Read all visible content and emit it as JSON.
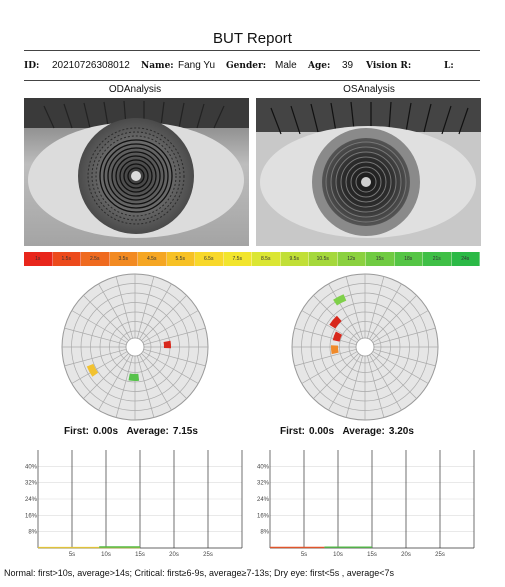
{
  "report": {
    "title": "BUT Report"
  },
  "info": {
    "id_label": "ID:",
    "id_value": "20210726308012",
    "name_label": "Name:",
    "name_value": "Fang Yu",
    "gender_label": "Gender:",
    "gender_value": "Male",
    "age_label": "Age:",
    "age_value": "39",
    "vision_r_label": "Vision R:",
    "vision_l_label": "L:"
  },
  "od": {
    "title": "ODAnalysis",
    "first_label": "First:",
    "first_value": "0.00s",
    "average_label": "Average:",
    "average_value": "7.15s"
  },
  "os": {
    "title": "OSAnalysis",
    "first_label": "First:",
    "first_value": "0.00s",
    "average_label": "Average:",
    "average_value": "3.20s"
  },
  "scale": {
    "labels": [
      "1s",
      "1.5s",
      "2.5s",
      "3.5s",
      "4.5s",
      "5.5s",
      "6.5s",
      "7.5s",
      "8.5s",
      "9.5s",
      "10.5s",
      "12s",
      "15s",
      "18s",
      "21s",
      "24s"
    ],
    "colors": [
      "#e8261b",
      "#ec4a1c",
      "#ef6a1f",
      "#f28a22",
      "#f5a623",
      "#f7c125",
      "#f8d82a",
      "#f2e52d",
      "#dbe633",
      "#c1df37",
      "#a5d83b",
      "#8bd13f",
      "#70cb42",
      "#55c545",
      "#3fbf46",
      "#2bb946"
    ]
  },
  "chart_data": [
    {
      "type": "line",
      "title": "",
      "xlabel": "",
      "ylabel": "",
      "x_ticks": [
        "5s",
        "10s",
        "15s",
        "20s",
        "25s"
      ],
      "y_ticks": [
        "8%",
        "16%",
        "24%",
        "32%",
        "40%"
      ],
      "xlim": [
        0,
        30
      ],
      "ylim": [
        0,
        48
      ],
      "grid": true,
      "series": [
        {
          "x": [
            0,
            5,
            9,
            15
          ],
          "values": [
            0.2,
            0.2,
            0.2,
            0.2
          ],
          "color": "#e0c23a"
        },
        {
          "x": [
            9,
            15
          ],
          "values": [
            0.5,
            0.5
          ],
          "color": "#52b946"
        }
      ]
    },
    {
      "type": "line",
      "title": "",
      "xlabel": "",
      "ylabel": "",
      "x_ticks": [
        "5s",
        "10s",
        "15s",
        "20s",
        "25s"
      ],
      "y_ticks": [
        "8%",
        "16%",
        "24%",
        "32%",
        "40%"
      ],
      "xlim": [
        0,
        30
      ],
      "ylim": [
        0,
        48
      ],
      "grid": true,
      "series": [
        {
          "x": [
            0,
            4,
            8
          ],
          "values": [
            0.3,
            0.3,
            0.3
          ],
          "color": "#e0552b"
        },
        {
          "x": [
            8,
            15
          ],
          "values": [
            0.4,
            0.4
          ],
          "color": "#52b946"
        }
      ]
    }
  ],
  "legend": {
    "text": "Normal: first>10s, average>14s; Critical: first≥6-9s, average≥7-13s; Dry eye: first<5s , average<7s"
  }
}
